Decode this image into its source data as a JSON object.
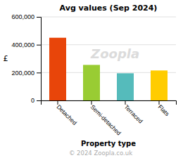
{
  "chart_data": {
    "type": "bar",
    "title": "Avg values (Sep 2024)",
    "categories": [
      "Detached",
      "Semi-detached",
      "Terraced",
      "Flats"
    ],
    "values": [
      450000,
      255000,
      195000,
      215000
    ],
    "colors": [
      "#e8450a",
      "#99cc33",
      "#55bbbb",
      "#ffcc00"
    ],
    "xlabel": "Property type",
    "ylabel": "£",
    "ylim": [
      0,
      600000
    ],
    "yticks": [
      0,
      {
        "value": 200000,
        "label": "200,000"
      },
      {
        "value": 400000,
        "label": "400,000"
      },
      {
        "value": 600000,
        "label": "600,000"
      }
    ],
    "grid": true,
    "annotations": [
      "Zoopla",
      "© 2024 Zoopla.co.uk"
    ]
  }
}
